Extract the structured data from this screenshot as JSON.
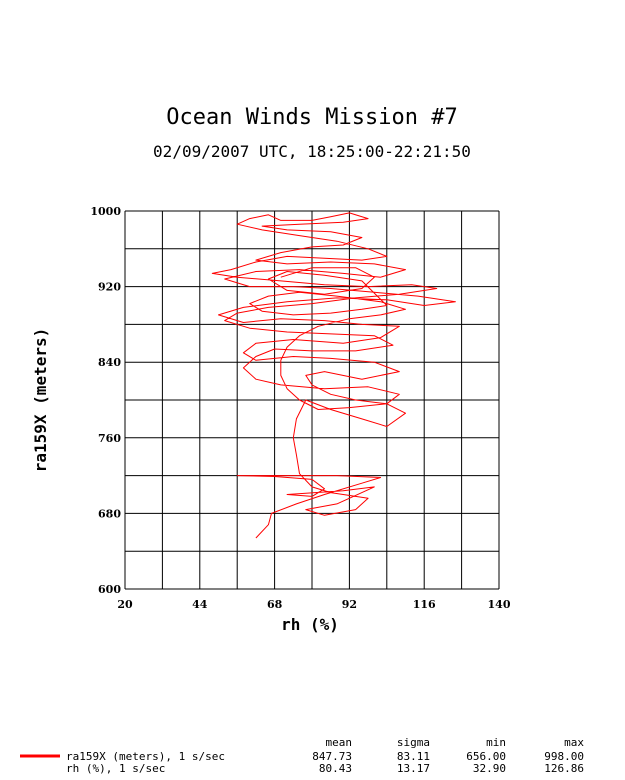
{
  "chart_data": {
    "type": "line",
    "title": "Ocean Winds Mission #7",
    "subtitle": "02/09/2007  UTC, 18:25:00-22:21:50",
    "xlabel": "rh (%)",
    "ylabel": "ra159X (meters)",
    "xlim": [
      20,
      140
    ],
    "ylim": [
      600,
      1000
    ],
    "x_ticks": [
      "20",
      "44",
      "68",
      "92",
      "116",
      "140"
    ],
    "y_ticks": [
      "600",
      "680",
      "760",
      "840",
      "920",
      "1000"
    ],
    "grid": true,
    "line_color": "#ff0000",
    "series": [
      {
        "name": "ra159X (meters), 1 s/sec",
        "points": [
          [
            62,
            654
          ],
          [
            66,
            668
          ],
          [
            67,
            680
          ],
          [
            75,
            690
          ],
          [
            84,
            700
          ],
          [
            96,
            712
          ],
          [
            102,
            718
          ],
          [
            88,
            720
          ],
          [
            72,
            720
          ],
          [
            56,
            720
          ],
          [
            68,
            719
          ],
          [
            80,
            716
          ],
          [
            84,
            706
          ],
          [
            80,
            698
          ],
          [
            72,
            700
          ],
          [
            90,
            704
          ],
          [
            100,
            708
          ],
          [
            88,
            690
          ],
          [
            78,
            684
          ],
          [
            84,
            678
          ],
          [
            94,
            684
          ],
          [
            98,
            696
          ],
          [
            86,
            702
          ],
          [
            80,
            708
          ],
          [
            76,
            722
          ],
          [
            75,
            742
          ],
          [
            74,
            760
          ],
          [
            75,
            780
          ],
          [
            78,
            800
          ],
          [
            86,
            790
          ],
          [
            96,
            780
          ],
          [
            104,
            772
          ],
          [
            110,
            786
          ],
          [
            104,
            796
          ],
          [
            94,
            800
          ],
          [
            86,
            806
          ],
          [
            80,
            816
          ],
          [
            78,
            826
          ],
          [
            84,
            830
          ],
          [
            96,
            822
          ],
          [
            108,
            830
          ],
          [
            100,
            840
          ],
          [
            86,
            844
          ],
          [
            74,
            846
          ],
          [
            62,
            842
          ],
          [
            58,
            850
          ],
          [
            62,
            860
          ],
          [
            74,
            864
          ],
          [
            90,
            860
          ],
          [
            102,
            866
          ],
          [
            108,
            878
          ],
          [
            96,
            880
          ],
          [
            84,
            884
          ],
          [
            70,
            886
          ],
          [
            58,
            882
          ],
          [
            50,
            890
          ],
          [
            58,
            898
          ],
          [
            72,
            904
          ],
          [
            88,
            908
          ],
          [
            104,
            906
          ],
          [
            116,
            900
          ],
          [
            126,
            904
          ],
          [
            114,
            910
          ],
          [
            100,
            914
          ],
          [
            86,
            918
          ],
          [
            74,
            920
          ],
          [
            60,
            920
          ],
          [
            52,
            928
          ],
          [
            62,
            936
          ],
          [
            76,
            938
          ],
          [
            90,
            934
          ],
          [
            102,
            930
          ],
          [
            110,
            938
          ],
          [
            100,
            944
          ],
          [
            86,
            946
          ],
          [
            72,
            944
          ],
          [
            62,
            948
          ],
          [
            70,
            956
          ],
          [
            80,
            962
          ],
          [
            90,
            964
          ],
          [
            96,
            972
          ],
          [
            86,
            978
          ],
          [
            72,
            980
          ],
          [
            64,
            984
          ],
          [
            76,
            986
          ],
          [
            90,
            988
          ],
          [
            98,
            992
          ],
          [
            92,
            998
          ],
          [
            86,
            994
          ],
          [
            80,
            990
          ],
          [
            70,
            990
          ],
          [
            66,
            996
          ],
          [
            60,
            992
          ],
          [
            56,
            986
          ],
          [
            64,
            980
          ],
          [
            76,
            974
          ],
          [
            88,
            968
          ],
          [
            98,
            960
          ],
          [
            104,
            952
          ],
          [
            96,
            948
          ],
          [
            84,
            950
          ],
          [
            72,
            952
          ],
          [
            62,
            946
          ],
          [
            54,
            938
          ],
          [
            48,
            934
          ],
          [
            56,
            930
          ],
          [
            70,
            926
          ],
          [
            84,
            922
          ],
          [
            98,
            920
          ],
          [
            112,
            922
          ],
          [
            120,
            918
          ],
          [
            108,
            912
          ],
          [
            94,
            908
          ],
          [
            80,
            902
          ],
          [
            66,
            898
          ],
          [
            56,
            892
          ],
          [
            52,
            884
          ],
          [
            60,
            876
          ],
          [
            72,
            872
          ],
          [
            86,
            870
          ],
          [
            100,
            868
          ],
          [
            106,
            858
          ],
          [
            94,
            852
          ],
          [
            80,
            852
          ],
          [
            68,
            854
          ],
          [
            62,
            846
          ],
          [
            58,
            834
          ],
          [
            62,
            822
          ],
          [
            70,
            816
          ],
          [
            84,
            812
          ],
          [
            98,
            814
          ],
          [
            108,
            806
          ],
          [
            104,
            796
          ],
          [
            92,
            792
          ],
          [
            82,
            790
          ],
          [
            76,
            800
          ],
          [
            72,
            812
          ],
          [
            70,
            826
          ],
          [
            70,
            842
          ],
          [
            72,
            856
          ],
          [
            76,
            868
          ],
          [
            82,
            878
          ],
          [
            92,
            886
          ],
          [
            102,
            890
          ],
          [
            110,
            896
          ],
          [
            102,
            904
          ],
          [
            88,
            910
          ],
          [
            76,
            914
          ],
          [
            66,
            910
          ],
          [
            60,
            902
          ],
          [
            64,
            894
          ],
          [
            74,
            890
          ],
          [
            86,
            892
          ],
          [
            96,
            896
          ],
          [
            104,
            900
          ],
          [
            96,
            926
          ],
          [
            84,
            932
          ],
          [
            72,
            936
          ],
          [
            66,
            928
          ],
          [
            72,
            916
          ],
          [
            84,
            912
          ],
          [
            96,
            918
          ],
          [
            100,
            930
          ],
          [
            94,
            940
          ],
          [
            80,
            940
          ],
          [
            70,
            930
          ]
        ]
      },
      {
        "name": "rh (%), 1 s/sec",
        "points": []
      }
    ],
    "stats_headers": [
      "mean",
      "sigma",
      "min",
      "max"
    ],
    "stats_rows": [
      {
        "name": "ra159X (meters), 1 s/sec",
        "values": [
          "847.73",
          "83.11",
          "656.00",
          "998.00"
        ]
      },
      {
        "name": "rh (%), 1 s/sec",
        "values": [
          "80.43",
          "13.17",
          "32.90",
          "126.86"
        ]
      }
    ]
  }
}
